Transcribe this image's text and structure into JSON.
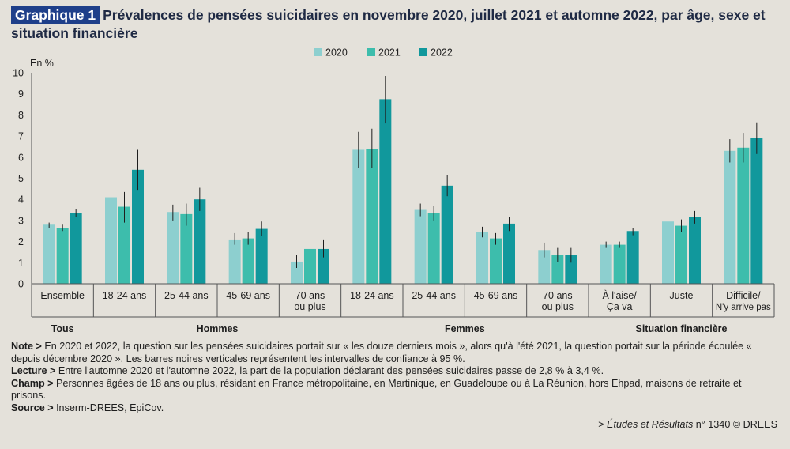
{
  "title": {
    "badge": "Graphique 1",
    "text": "Prévalences de pensées suicidaires en novembre 2020, juillet 2021 et automne 2022, par âge, sexe et situation financière"
  },
  "colors": {
    "2020": "#8dcfcf",
    "2021": "#3dbdac",
    "2022": "#11989c",
    "error": "#1e1e1e"
  },
  "chart_data": {
    "type": "bar",
    "ylabel": "En %",
    "ylim": [
      0,
      10
    ],
    "yticks": [
      0,
      1,
      2,
      3,
      4,
      5,
      6,
      7,
      8,
      9,
      10
    ],
    "legend_position": "top-center",
    "categories": [
      [
        "Ensemble"
      ],
      [
        "18-24 ans"
      ],
      [
        "25-44 ans"
      ],
      [
        "45-69 ans"
      ],
      [
        "70 ans",
        "ou plus"
      ],
      [
        "18-24 ans"
      ],
      [
        "25-44 ans"
      ],
      [
        "45-69 ans"
      ],
      [
        "70 ans",
        "ou plus"
      ],
      [
        "À l'aise/",
        "Ça va"
      ],
      [
        "Juste"
      ],
      [
        "Difficile/",
        "N'y arrive pas"
      ]
    ],
    "groups": [
      {
        "label": "Tous",
        "start": 0,
        "end": 0
      },
      {
        "label": "Hommes",
        "start": 1,
        "end": 4
      },
      {
        "label": "Femmes",
        "start": 5,
        "end": 8
      },
      {
        "label": "Situation financière",
        "start": 9,
        "end": 11
      }
    ],
    "series": [
      {
        "name": "2020",
        "values": [
          2.8,
          4.1,
          3.4,
          2.1,
          1.05,
          6.35,
          3.5,
          2.45,
          1.6,
          1.85,
          2.95,
          6.3
        ],
        "ci": [
          [
            2.65,
            2.9
          ],
          [
            3.5,
            4.75
          ],
          [
            3.0,
            3.75
          ],
          [
            1.85,
            2.4
          ],
          [
            0.75,
            1.35
          ],
          [
            5.5,
            7.2
          ],
          [
            3.2,
            3.8
          ],
          [
            2.2,
            2.7
          ],
          [
            1.25,
            1.95
          ],
          [
            1.7,
            2.0
          ],
          [
            2.7,
            3.2
          ],
          [
            5.75,
            6.85
          ]
        ]
      },
      {
        "name": "2021",
        "values": [
          2.65,
          3.65,
          3.3,
          2.15,
          1.65,
          6.4,
          3.35,
          2.15,
          1.35,
          1.85,
          2.75,
          6.45
        ],
        "ci": [
          [
            2.5,
            2.8
          ],
          [
            2.9,
            4.35
          ],
          [
            2.75,
            3.8
          ],
          [
            1.85,
            2.45
          ],
          [
            1.2,
            2.1
          ],
          [
            5.5,
            7.35
          ],
          [
            3.0,
            3.7
          ],
          [
            1.85,
            2.4
          ],
          [
            1.05,
            1.7
          ],
          [
            1.7,
            2.0
          ],
          [
            2.45,
            3.05
          ],
          [
            5.75,
            7.15
          ]
        ]
      },
      {
        "name": "2022",
        "values": [
          3.35,
          5.4,
          4.0,
          2.6,
          1.65,
          8.75,
          4.65,
          2.85,
          1.35,
          2.5,
          3.15,
          6.9
        ],
        "ci": [
          [
            3.15,
            3.55
          ],
          [
            4.45,
            6.35
          ],
          [
            3.45,
            4.55
          ],
          [
            2.25,
            2.95
          ],
          [
            1.25,
            2.1
          ],
          [
            7.6,
            9.85
          ],
          [
            4.15,
            5.15
          ],
          [
            2.5,
            3.15
          ],
          [
            1.0,
            1.7
          ],
          [
            2.3,
            2.65
          ],
          [
            2.85,
            3.45
          ],
          [
            6.15,
            7.65
          ]
        ]
      }
    ]
  },
  "notes": {
    "note_label": "Note >",
    "note_text": "En 2020 et 2022, la question sur les pensées suicidaires portait sur « les douze derniers mois », alors qu'à l'été 2021, la question portait sur la période écoulée « depuis décembre 2020 ». Les barres noires verticales représentent les intervalles de confiance à 95 %.",
    "lecture_label": "Lecture >",
    "lecture_text": "Entre l'automne 2020 et l'automne 2022, la part de la population déclarant des pensées suicidaires passe de 2,8 % à 3,4 %.",
    "champ_label": "Champ >",
    "champ_text": "Personnes âgées de 18 ans ou plus, résidant en France métropolitaine, en Martinique, en Guadeloupe ou à La Réunion, hors Ehpad, maisons de retraite et prisons.",
    "source_label": "Source >",
    "source_text": "Inserm-DREES, EpiCov."
  },
  "credit": {
    "prefix": "> ",
    "publication": "Études et Résultats",
    "suffix": " n° 1340 © DREES"
  }
}
